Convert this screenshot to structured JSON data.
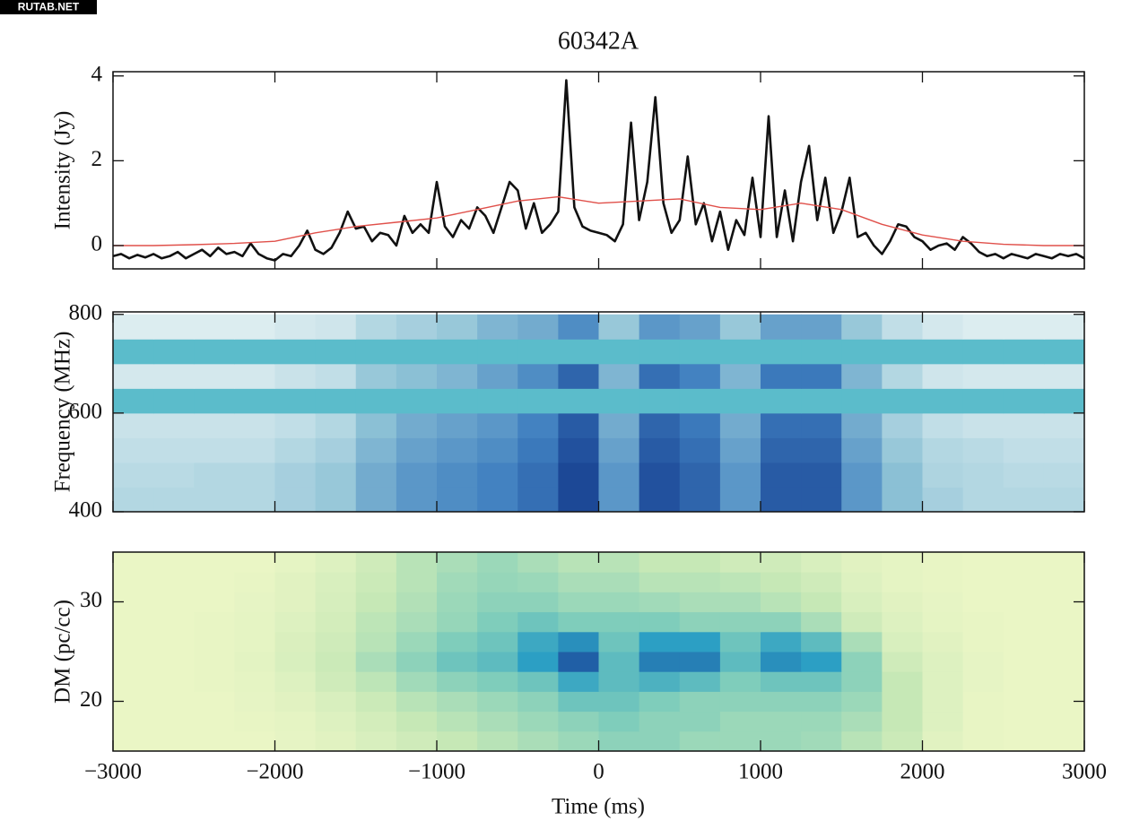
{
  "watermark": "RUTAB.NET",
  "chart_data": [
    {
      "type": "line",
      "title": "60342A",
      "ylabel": "Intensity (Jy)",
      "xlim": [
        -3000,
        3000
      ],
      "xticks": [
        -3000,
        -2000,
        -1000,
        0,
        1000,
        2000,
        3000
      ],
      "ylim": [
        -0.55,
        4.1
      ],
      "yticks": [
        0,
        2,
        4
      ],
      "series": [
        {
          "color": "#111111",
          "x": [
            -3000,
            -2950,
            -2900,
            -2850,
            -2800,
            -2750,
            -2700,
            -2650,
            -2600,
            -2550,
            -2500,
            -2450,
            -2400,
            -2350,
            -2300,
            -2250,
            -2200,
            -2150,
            -2100,
            -2050,
            -2000,
            -1950,
            -1900,
            -1850,
            -1800,
            -1750,
            -1700,
            -1650,
            -1600,
            -1550,
            -1500,
            -1450,
            -1400,
            -1350,
            -1300,
            -1250,
            -1200,
            -1150,
            -1100,
            -1050,
            -1000,
            -950,
            -900,
            -850,
            -800,
            -750,
            -700,
            -650,
            -600,
            -550,
            -500,
            -450,
            -400,
            -350,
            -300,
            -250,
            -200,
            -150,
            -100,
            -50,
            0,
            50,
            100,
            150,
            200,
            250,
            300,
            350,
            400,
            450,
            500,
            550,
            600,
            650,
            700,
            750,
            800,
            850,
            900,
            950,
            1000,
            1050,
            1100,
            1150,
            1200,
            1250,
            1300,
            1350,
            1400,
            1450,
            1500,
            1550,
            1600,
            1650,
            1700,
            1750,
            1800,
            1850,
            1900,
            1950,
            2000,
            2050,
            2100,
            2150,
            2200,
            2250,
            2300,
            2350,
            2400,
            2450,
            2500,
            2550,
            2600,
            2650,
            2700,
            2750,
            2800,
            2850,
            2900,
            2950,
            3000
          ],
          "values": [
            -0.25,
            -0.2,
            -0.3,
            -0.22,
            -0.28,
            -0.2,
            -0.3,
            -0.25,
            -0.15,
            -0.3,
            -0.2,
            -0.1,
            -0.25,
            -0.05,
            -0.2,
            -0.15,
            -0.25,
            0.05,
            -0.2,
            -0.3,
            -0.35,
            -0.2,
            -0.25,
            0.0,
            0.35,
            -0.1,
            -0.2,
            -0.05,
            0.3,
            0.8,
            0.4,
            0.45,
            0.1,
            0.3,
            0.25,
            0.0,
            0.7,
            0.3,
            0.5,
            0.3,
            1.5,
            0.45,
            0.2,
            0.6,
            0.4,
            0.9,
            0.7,
            0.3,
            0.9,
            1.5,
            1.3,
            0.4,
            1.0,
            0.3,
            0.5,
            0.8,
            3.9,
            0.9,
            0.45,
            0.35,
            0.3,
            0.25,
            0.1,
            0.5,
            2.9,
            0.6,
            1.5,
            3.5,
            1.0,
            0.3,
            0.6,
            2.1,
            0.5,
            1.0,
            0.1,
            0.8,
            -0.1,
            0.6,
            0.25,
            1.6,
            0.2,
            3.05,
            0.2,
            1.3,
            0.1,
            1.5,
            2.35,
            0.6,
            1.6,
            0.3,
            0.8,
            1.6,
            0.2,
            0.3,
            0.0,
            -0.2,
            0.1,
            0.5,
            0.45,
            0.2,
            0.1,
            -0.1,
            0.0,
            0.05,
            -0.1,
            0.2,
            0.05,
            -0.15,
            -0.25,
            -0.2,
            -0.3,
            -0.2,
            -0.25,
            -0.3,
            -0.2,
            -0.25,
            -0.3,
            -0.2,
            -0.25,
            -0.2,
            -0.3
          ]
        },
        {
          "color": "#e0504a",
          "x": [
            -3000,
            -2750,
            -2500,
            -2250,
            -2000,
            -1750,
            -1500,
            -1250,
            -1000,
            -750,
            -500,
            -250,
            0,
            250,
            500,
            750,
            1000,
            1250,
            1500,
            1750,
            2000,
            2250,
            2500,
            2750,
            3000
          ],
          "values": [
            0.0,
            0.0,
            0.02,
            0.05,
            0.1,
            0.3,
            0.45,
            0.55,
            0.65,
            0.85,
            1.05,
            1.15,
            1.0,
            1.05,
            1.1,
            0.9,
            0.85,
            1.0,
            0.85,
            0.5,
            0.25,
            0.1,
            0.03,
            0.0,
            0.0
          ]
        }
      ]
    },
    {
      "type": "heatmap",
      "ylabel": "Frequency (MHz)",
      "xlim": [
        -3000,
        3000
      ],
      "xticks": [
        -3000,
        -2000,
        -1000,
        0,
        1000,
        2000,
        3000
      ],
      "ylim": [
        400,
        805
      ],
      "yticks": [
        400,
        600,
        800
      ],
      "zlim": [
        0,
        1
      ],
      "colormap": [
        "#eaf4f4",
        "#8fc3d6",
        "#3f7fc0",
        "#163e8f"
      ],
      "mask_color": "#5bbccb",
      "x": [
        -2875,
        -2625,
        -2375,
        -2125,
        -1875,
        -1625,
        -1375,
        -1125,
        -875,
        -625,
        -375,
        -125,
        125,
        375,
        625,
        875,
        1125,
        1375,
        1625,
        1875,
        2125,
        2375,
        2625,
        2875
      ],
      "y": [
        425,
        475,
        525,
        575,
        625,
        675,
        725,
        775
      ],
      "z": [
        [
          0.2,
          0.2,
          0.2,
          0.2,
          0.25,
          0.3,
          0.45,
          0.55,
          0.6,
          0.65,
          0.75,
          0.95,
          0.55,
          0.9,
          0.8,
          0.55,
          0.85,
          0.85,
          0.55,
          0.35,
          0.25,
          0.2,
          0.2,
          0.2
        ],
        [
          0.18,
          0.18,
          0.2,
          0.2,
          0.25,
          0.3,
          0.45,
          0.55,
          0.6,
          0.65,
          0.75,
          0.95,
          0.55,
          0.9,
          0.8,
          0.55,
          0.85,
          0.85,
          0.55,
          0.35,
          0.22,
          0.2,
          0.18,
          0.18
        ],
        [
          0.15,
          0.15,
          0.15,
          0.15,
          0.2,
          0.25,
          0.4,
          0.5,
          0.55,
          0.6,
          0.7,
          0.9,
          0.5,
          0.85,
          0.75,
          0.5,
          0.8,
          0.8,
          0.5,
          0.3,
          0.2,
          0.18,
          0.15,
          0.15
        ],
        [
          0.12,
          0.12,
          0.12,
          0.12,
          0.15,
          0.2,
          0.35,
          0.45,
          0.5,
          0.55,
          0.65,
          0.85,
          0.45,
          0.8,
          0.7,
          0.45,
          0.75,
          0.75,
          0.45,
          0.25,
          0.15,
          0.12,
          0.12,
          0.12
        ],
        [
          null,
          null,
          null,
          null,
          null,
          null,
          null,
          null,
          null,
          null,
          null,
          null,
          null,
          null,
          null,
          null,
          null,
          null,
          null,
          null,
          null,
          null,
          null,
          null
        ],
        [
          0.08,
          0.08,
          0.08,
          0.08,
          0.12,
          0.15,
          0.3,
          0.35,
          0.4,
          0.5,
          0.6,
          0.8,
          0.4,
          0.75,
          0.65,
          0.4,
          0.7,
          0.7,
          0.4,
          0.2,
          0.1,
          0.08,
          0.08,
          0.08
        ],
        [
          null,
          null,
          null,
          null,
          null,
          null,
          null,
          null,
          null,
          null,
          null,
          null,
          null,
          null,
          null,
          null,
          null,
          null,
          null,
          null,
          null,
          null,
          null,
          null
        ],
        [
          0.05,
          0.05,
          0.05,
          0.05,
          0.08,
          0.1,
          0.2,
          0.25,
          0.3,
          0.4,
          0.45,
          0.6,
          0.3,
          0.55,
          0.5,
          0.3,
          0.5,
          0.5,
          0.3,
          0.15,
          0.08,
          0.05,
          0.05,
          0.05
        ]
      ]
    },
    {
      "type": "heatmap",
      "ylabel": "DM (pc/cc)",
      "xlabel": "Time (ms)",
      "xlim": [
        -3000,
        3000
      ],
      "xticks": [
        {
          "value": -3000,
          "label": "−3000"
        },
        {
          "value": -2000,
          "label": "−2000"
        },
        {
          "value": -1000,
          "label": "−1000"
        },
        0,
        1000,
        2000,
        3000
      ],
      "ylim": [
        15,
        35
      ],
      "yticks": [
        20,
        30
      ],
      "zlim": [
        0,
        1
      ],
      "colormap": [
        "#f3f9c9",
        "#c6e8b6",
        "#7fcdbb",
        "#2c9fc4",
        "#1d4f9e"
      ],
      "x": [
        -2875,
        -2625,
        -2375,
        -2125,
        -1875,
        -1625,
        -1375,
        -1125,
        -875,
        -625,
        -375,
        -125,
        125,
        375,
        625,
        875,
        1125,
        1375,
        1625,
        1875,
        2125,
        2375,
        2625,
        2875
      ],
      "y": [
        16,
        18,
        20,
        22,
        24,
        26,
        28,
        30,
        32,
        34
      ],
      "z": [
        [
          0.05,
          0.05,
          0.05,
          0.05,
          0.07,
          0.1,
          0.15,
          0.2,
          0.25,
          0.3,
          0.35,
          0.4,
          0.45,
          0.45,
          0.4,
          0.4,
          0.4,
          0.38,
          0.3,
          0.22,
          0.1,
          0.06,
          0.05,
          0.05
        ],
        [
          0.05,
          0.05,
          0.05,
          0.06,
          0.08,
          0.12,
          0.18,
          0.25,
          0.3,
          0.35,
          0.4,
          0.45,
          0.5,
          0.45,
          0.45,
          0.4,
          0.4,
          0.4,
          0.35,
          0.25,
          0.12,
          0.06,
          0.05,
          0.05
        ],
        [
          0.05,
          0.05,
          0.05,
          0.07,
          0.1,
          0.15,
          0.22,
          0.3,
          0.35,
          0.4,
          0.45,
          0.55,
          0.55,
          0.5,
          0.45,
          0.45,
          0.45,
          0.45,
          0.4,
          0.25,
          0.12,
          0.06,
          0.05,
          0.05
        ],
        [
          0.05,
          0.05,
          0.06,
          0.08,
          0.12,
          0.2,
          0.28,
          0.38,
          0.45,
          0.5,
          0.55,
          0.7,
          0.6,
          0.65,
          0.6,
          0.5,
          0.55,
          0.55,
          0.45,
          0.25,
          0.12,
          0.07,
          0.05,
          0.05
        ],
        [
          0.05,
          0.05,
          0.06,
          0.09,
          0.15,
          0.22,
          0.35,
          0.45,
          0.55,
          0.6,
          0.75,
          0.95,
          0.6,
          0.85,
          0.85,
          0.6,
          0.8,
          0.75,
          0.45,
          0.2,
          0.12,
          0.07,
          0.05,
          0.05
        ],
        [
          0.05,
          0.05,
          0.06,
          0.08,
          0.14,
          0.2,
          0.3,
          0.4,
          0.5,
          0.55,
          0.7,
          0.8,
          0.55,
          0.75,
          0.75,
          0.55,
          0.7,
          0.6,
          0.35,
          0.15,
          0.1,
          0.06,
          0.05,
          0.05
        ],
        [
          0.05,
          0.05,
          0.06,
          0.08,
          0.12,
          0.18,
          0.28,
          0.35,
          0.42,
          0.5,
          0.55,
          0.5,
          0.5,
          0.5,
          0.45,
          0.45,
          0.45,
          0.35,
          0.2,
          0.12,
          0.08,
          0.06,
          0.05,
          0.05
        ],
        [
          0.05,
          0.05,
          0.05,
          0.07,
          0.1,
          0.16,
          0.25,
          0.32,
          0.4,
          0.45,
          0.45,
          0.4,
          0.4,
          0.38,
          0.35,
          0.35,
          0.3,
          0.25,
          0.15,
          0.1,
          0.07,
          0.05,
          0.05,
          0.05
        ],
        [
          0.05,
          0.05,
          0.05,
          0.06,
          0.1,
          0.15,
          0.22,
          0.3,
          0.38,
          0.42,
          0.4,
          0.35,
          0.35,
          0.3,
          0.3,
          0.28,
          0.25,
          0.2,
          0.12,
          0.08,
          0.06,
          0.05,
          0.05,
          0.05
        ],
        [
          0.05,
          0.05,
          0.05,
          0.05,
          0.08,
          0.12,
          0.2,
          0.3,
          0.35,
          0.4,
          0.35,
          0.3,
          0.3,
          0.25,
          0.25,
          0.2,
          0.2,
          0.15,
          0.1,
          0.08,
          0.06,
          0.05,
          0.05,
          0.05
        ]
      ]
    }
  ]
}
